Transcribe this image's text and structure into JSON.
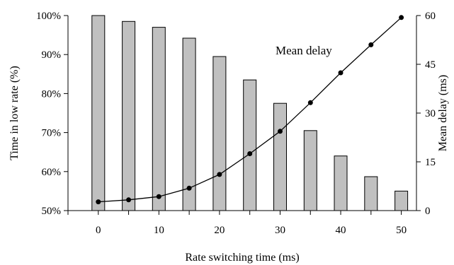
{
  "chart_data": {
    "type": "bar",
    "x": [
      0,
      5,
      10,
      15,
      20,
      25,
      30,
      35,
      40,
      45,
      50
    ],
    "series": [
      {
        "type": "bar",
        "axis": "left",
        "values": [
          100,
          98.5,
          97,
          94.2,
          89.5,
          83.5,
          77.5,
          70.5,
          64,
          58.7,
          55
        ]
      },
      {
        "type": "line",
        "axis": "right",
        "name": "Mean delay",
        "values": [
          2.7,
          3.3,
          4.3,
          6.9,
          11.1,
          17.5,
          24.4,
          33.2,
          42.4,
          51,
          59.4
        ]
      }
    ],
    "xlabel": "Rate switching time (ms)",
    "ylabel_left": "Time in low rate (%)",
    "ylabel_right": "Mean delay (ms)",
    "x_ticks": [
      "0",
      "10",
      "20",
      "30",
      "40",
      "50"
    ],
    "y_left_ticks": [
      "50%",
      "60%",
      "70%",
      "80%",
      "90%",
      "100%"
    ],
    "y_right_ticks": [
      "0",
      "15",
      "30",
      "45",
      "60"
    ],
    "ylim_left": [
      50,
      100
    ],
    "ylim_right": [
      0,
      60
    ],
    "xlim": [
      -5,
      52.5
    ],
    "annotation": "Mean delay",
    "grid": false
  }
}
